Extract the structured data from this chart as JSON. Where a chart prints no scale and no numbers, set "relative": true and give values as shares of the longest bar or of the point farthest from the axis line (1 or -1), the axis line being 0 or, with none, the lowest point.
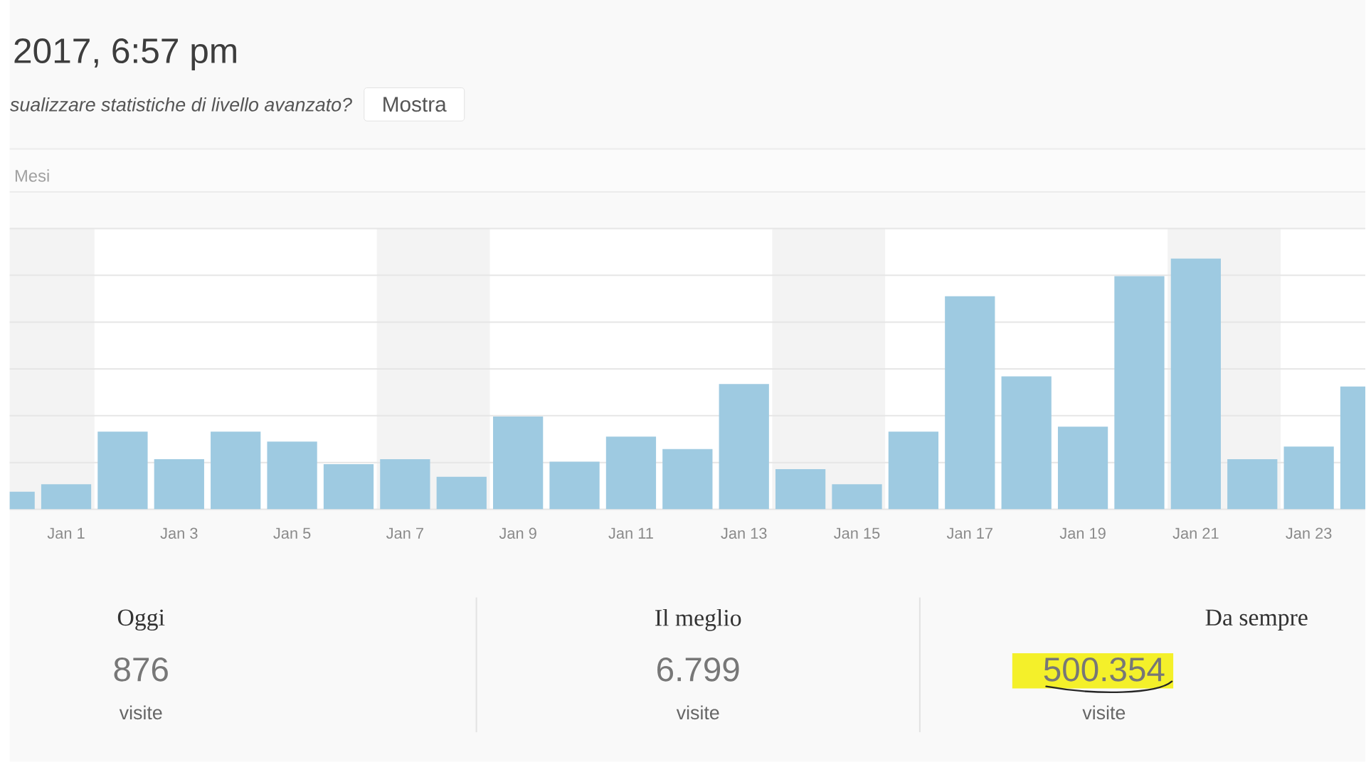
{
  "chart_data": {
    "type": "bar",
    "title": "2017, 6:57 pm",
    "subtitle": "sualizzare statistiche di livello avanzato?",
    "x": [
      "2016-12-31",
      "2017-01-01",
      "2017-01-02",
      "2017-01-03",
      "2017-01-04",
      "2017-01-05",
      "2017-01-06",
      "2017-01-07",
      "2017-01-08",
      "2017-01-09",
      "2017-01-10",
      "2017-01-11",
      "2017-01-12",
      "2017-01-13",
      "2017-01-14",
      "2017-01-15",
      "2017-01-16",
      "2017-01-17",
      "2017-01-18",
      "2017-01-19",
      "2017-01-20",
      "2017-01-21",
      "2017-01-22",
      "2017-01-23",
      "2017-01-24"
    ],
    "values": [
      0.07,
      0.1,
      0.31,
      0.2,
      0.31,
      0.27,
      0.18,
      0.2,
      0.13,
      0.37,
      0.19,
      0.29,
      0.24,
      0.5,
      0.16,
      0.1,
      0.31,
      0.85,
      0.53,
      0.33,
      0.93,
      1,
      0.2,
      0.25,
      0.49
    ],
    "relative": true,
    "color": "#9ecae1",
    "xlim": [
      "2016-12-31",
      "2017-01-24"
    ],
    "xticks": [
      {
        "value": "2017-01-01",
        "label": "Jan 1"
      },
      {
        "value": "2017-01-03",
        "label": "Jan 3"
      },
      {
        "value": "2017-01-05",
        "label": "Jan 5"
      },
      {
        "value": "2017-01-07",
        "label": "Jan 7"
      },
      {
        "value": "2017-01-09",
        "label": "Jan 9"
      },
      {
        "value": "2017-01-11",
        "label": "Jan 11"
      },
      {
        "value": "2017-01-13",
        "label": "Jan 13"
      },
      {
        "value": "2017-01-15",
        "label": "Jan 15"
      },
      {
        "value": "2017-01-17",
        "label": "Jan 17"
      },
      {
        "value": "2017-01-19",
        "label": "Jan 19"
      },
      {
        "value": "2017-01-21",
        "label": "Jan 21"
      },
      {
        "value": "2017-01-23",
        "label": "Jan 23"
      }
    ],
    "grid": "y",
    "tick_labels": "x",
    "bands": [
      {
        "axis": "x",
        "from": "2016-12-31",
        "to": "2017-01-01T12:00",
        "color": "#f3f3f3"
      },
      {
        "axis": "x",
        "from": "2017-01-06T12:00",
        "to": "2017-01-08T12:00",
        "color": "#f3f3f3"
      },
      {
        "axis": "x",
        "from": "2017-01-13T12:00",
        "to": "2017-01-15T12:00",
        "color": "#f3f3f3"
      },
      {
        "axis": "x",
        "from": "2017-01-20T12:00",
        "to": "2017-01-22T12:00",
        "color": "#f3f3f3"
      }
    ],
    "annotations": [
      "Mesi",
      "Mostra",
      "Oggi",
      "876",
      "visite",
      "Il meglio",
      "6.799",
      "visite",
      "Da sempre",
      "500.354",
      "visite"
    ]
  }
}
